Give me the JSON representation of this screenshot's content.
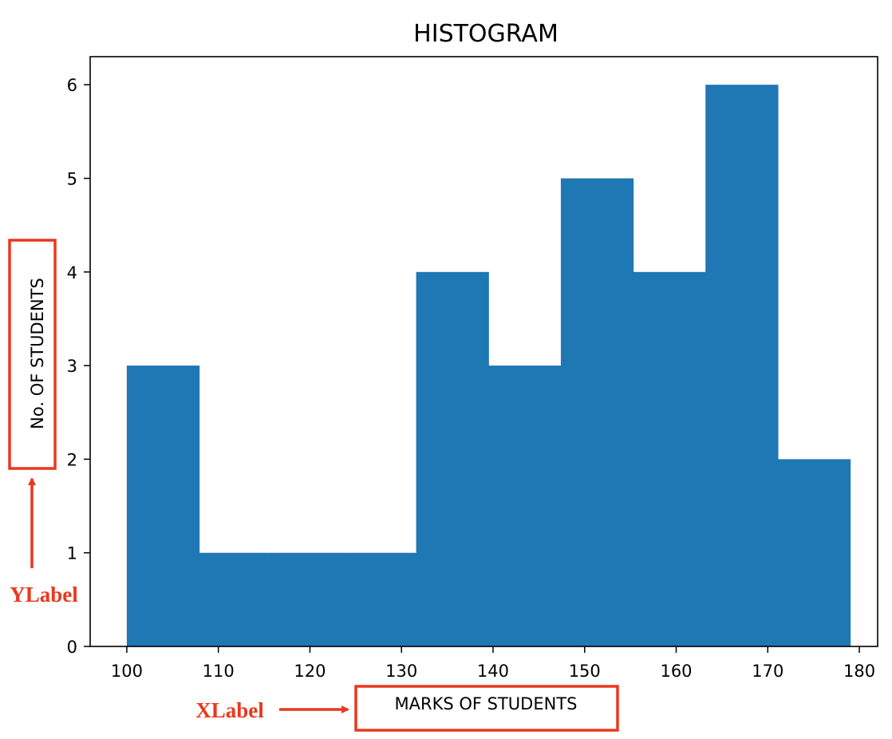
{
  "chart_data": {
    "type": "bar",
    "histogram": true,
    "title": "HISTOGRAM",
    "xlabel": "MARKS OF STUDENTS",
    "ylabel": "No. OF STUDENTS",
    "bin_edges": [
      100,
      107.9,
      115.8,
      123.7,
      131.6,
      139.5,
      147.4,
      155.3,
      163.2,
      171.1,
      179
    ],
    "values": [
      3,
      1,
      1,
      1,
      4,
      3,
      5,
      4,
      6,
      2
    ],
    "xlim": [
      96,
      182
    ],
    "ylim": [
      0,
      6.3
    ],
    "xticks": [
      100,
      110,
      120,
      130,
      140,
      150,
      160,
      170,
      180
    ],
    "yticks": [
      0,
      1,
      2,
      3,
      4,
      5,
      6
    ],
    "bar_color": "#1f77b4",
    "grid": false,
    "annotations": [
      {
        "text": "YLabel",
        "target": "ylabel",
        "color": "#e8391e"
      },
      {
        "text": "XLabel",
        "target": "xlabel",
        "color": "#e8391e"
      }
    ]
  }
}
